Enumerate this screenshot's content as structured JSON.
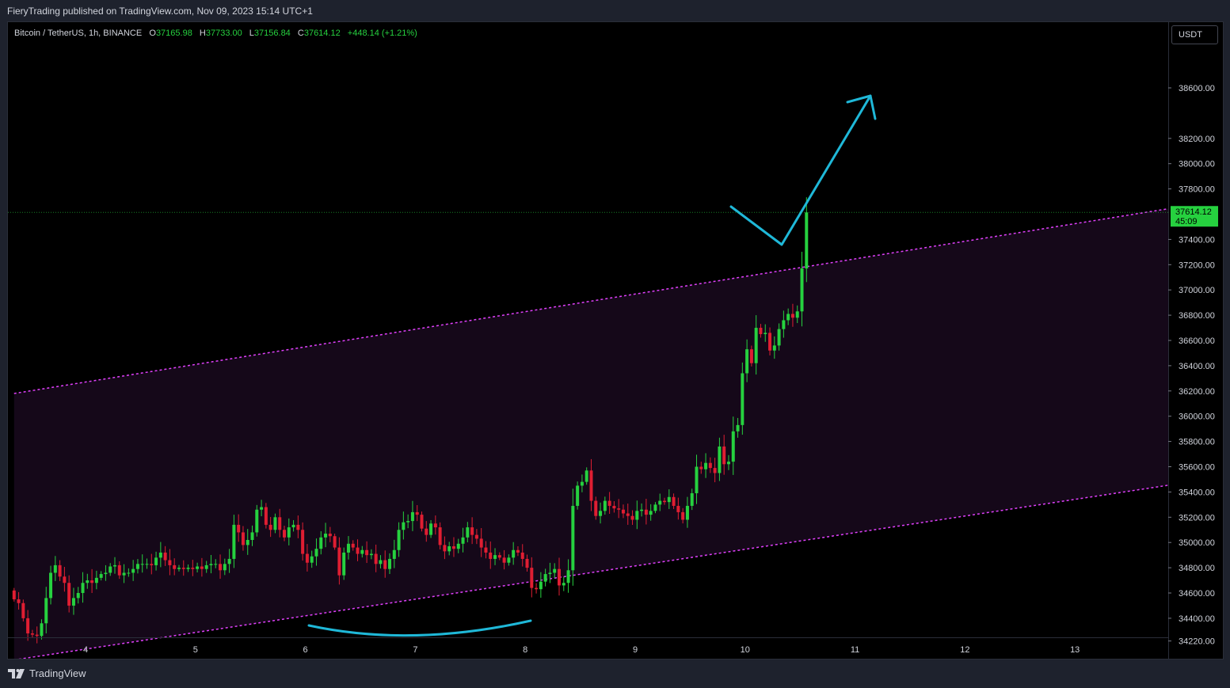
{
  "header": {
    "text": "FieryTrading published on TradingView.com, Nov 09, 2023 15:14 UTC+1"
  },
  "footer": {
    "brand": "TradingView"
  },
  "legend": {
    "symbol": "Bitcoin / TetherUS, 1h, BINANCE",
    "open_label": "O",
    "open": "37165.98",
    "high_label": "H",
    "high": "37733.00",
    "low_label": "L",
    "low": "37156.84",
    "close_label": "C",
    "close": "37614.12",
    "change": "+448.14 (+1.21%)"
  },
  "currency": "USDT",
  "last_price": {
    "value": "37614.12",
    "countdown": "45:09"
  },
  "colors": {
    "up": "#26d13f",
    "down": "#e01e32",
    "channel": "#e040fb",
    "annotation": "#1fb8d8",
    "axis_text": "#d1d4dc"
  },
  "chart_data": {
    "type": "candlestick",
    "title": "Bitcoin / TetherUS, 1h, BINANCE",
    "x_ticks": [
      "4",
      "5",
      "6",
      "7",
      "8",
      "9",
      "10",
      "11",
      "12",
      "13"
    ],
    "y_ticks": [
      "38600.00",
      "38200.00",
      "38000.00",
      "37800.00",
      "37400.00",
      "37200.00",
      "37000.00",
      "36800.00",
      "36600.00",
      "36400.00",
      "36200.00",
      "36000.00",
      "35800.00",
      "35600.00",
      "35400.00",
      "35200.00",
      "35000.00",
      "34800.00",
      "34600.00",
      "34400.00",
      "34220.00"
    ],
    "ylim": [
      34200,
      38900
    ],
    "x_start_day": 3.35,
    "bar_hours": 1,
    "closes": [
      34550,
      34520,
      34400,
      34280,
      34270,
      34260,
      34360,
      34560,
      34760,
      34820,
      34730,
      34680,
      34500,
      34560,
      34600,
      34680,
      34700,
      34680,
      34720,
      34750,
      34760,
      34810,
      34820,
      34740,
      34760,
      34760,
      34790,
      34830,
      34830,
      34830,
      34820,
      34880,
      34920,
      34860,
      34820,
      34790,
      34800,
      34790,
      34800,
      34790,
      34810,
      34790,
      34820,
      34830,
      34830,
      34780,
      34830,
      34870,
      35140,
      35080,
      34980,
      35020,
      35080,
      35260,
      35280,
      35140,
      35100,
      35200,
      35100,
      35040,
      35120,
      35140,
      35100,
      34910,
      34840,
      34890,
      34950,
      35040,
      35070,
      35050,
      34960,
      34740,
      34920,
      34990,
      34960,
      34910,
      34940,
      34900,
      34910,
      34830,
      34860,
      34790,
      34870,
      34940,
      35100,
      35160,
      35170,
      35240,
      35220,
      35110,
      35060,
      35150,
      35120,
      34980,
      34930,
      34970,
      34950,
      34990,
      35040,
      35120,
      35060,
      35030,
      34960,
      34920,
      34870,
      34900,
      34880,
      34840,
      34880,
      34940,
      34920,
      34870,
      34800,
      34640,
      34630,
      34690,
      34750,
      34760,
      34790,
      34660,
      34680,
      34780,
      35290,
      35450,
      35480,
      35570,
      35330,
      35210,
      35250,
      35330,
      35290,
      35270,
      35260,
      35230,
      35210,
      35180,
      35250,
      35260,
      35220,
      35250,
      35300,
      35330,
      35320,
      35360,
      35290,
      35240,
      35180,
      35290,
      35390,
      35600,
      35580,
      35630,
      35590,
      35550,
      35760,
      35620,
      35640,
      35880,
      35930,
      36340,
      36530,
      36420,
      36700,
      36650,
      36660,
      36520,
      36560,
      36690,
      36760,
      36810,
      36780,
      36830,
      37170,
      37614
    ],
    "channel_upper": [
      [
        3.35,
        36180
      ],
      [
        13.9,
        37650
      ]
    ],
    "channel_lower": [
      [
        3.35,
        34070
      ],
      [
        13.9,
        35460
      ]
    ]
  }
}
